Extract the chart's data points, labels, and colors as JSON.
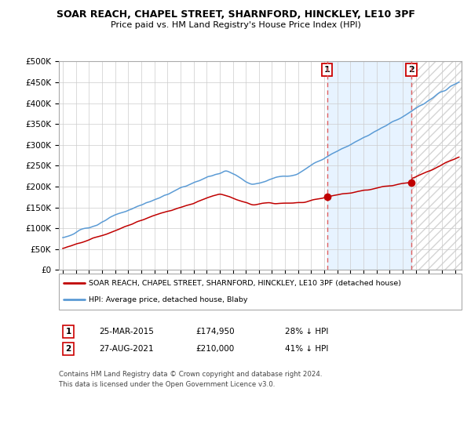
{
  "title": "SOAR REACH, CHAPEL STREET, SHARNFORD, HINCKLEY, LE10 3PF",
  "subtitle": "Price paid vs. HM Land Registry's House Price Index (HPI)",
  "ylabel_ticks": [
    "£0",
    "£50K",
    "£100K",
    "£150K",
    "£200K",
    "£250K",
    "£300K",
    "£350K",
    "£400K",
    "£450K",
    "£500K"
  ],
  "ytick_values": [
    0,
    50000,
    100000,
    150000,
    200000,
    250000,
    300000,
    350000,
    400000,
    450000,
    500000
  ],
  "ylim": [
    0,
    500000
  ],
  "xlim_start": 1994.7,
  "xlim_end": 2025.5,
  "hpi_color": "#5b9bd5",
  "price_color": "#c00000",
  "dashed_line_color": "#e06060",
  "fill_between_color": "#ddeeff",
  "marker1_x": 2015.22,
  "marker2_x": 2021.65,
  "marker1_price": 174950,
  "marker2_price": 210000,
  "legend_label_red": "SOAR REACH, CHAPEL STREET, SHARNFORD, HINCKLEY, LE10 3PF (detached house)",
  "legend_label_blue": "HPI: Average price, detached house, Blaby",
  "table_row1": [
    "1",
    "25-MAR-2015",
    "£174,950",
    "28% ↓ HPI"
  ],
  "table_row2": [
    "2",
    "27-AUG-2021",
    "£210,000",
    "41% ↓ HPI"
  ],
  "footnote": "Contains HM Land Registry data © Crown copyright and database right 2024.\nThis data is licensed under the Open Government Licence v3.0.",
  "background_color": "#ffffff",
  "grid_color": "#cccccc"
}
